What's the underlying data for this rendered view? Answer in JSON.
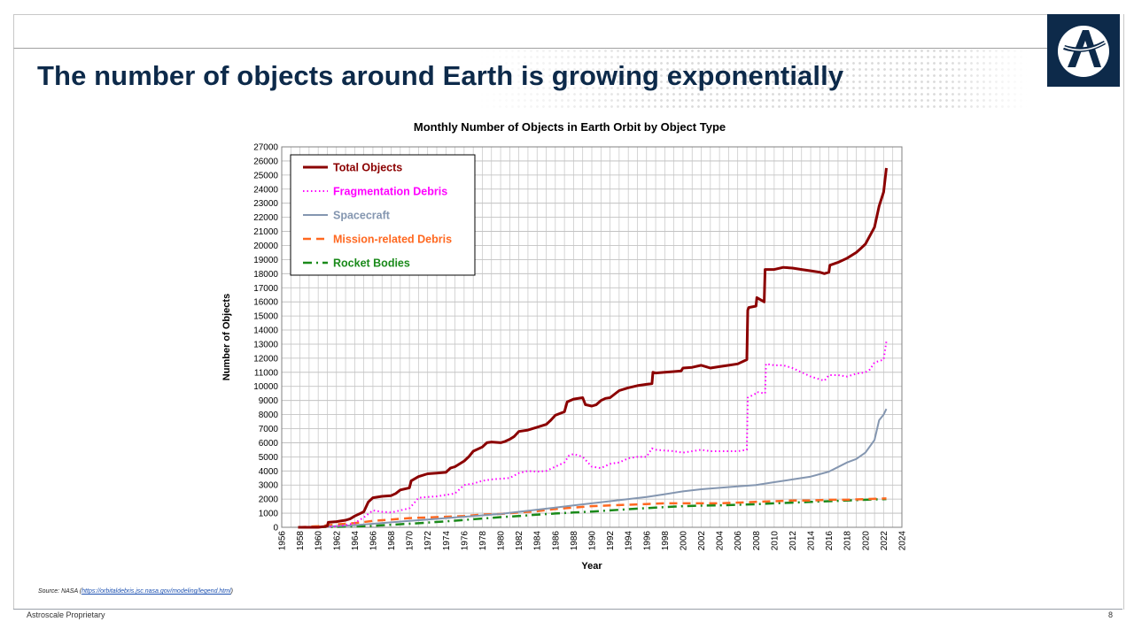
{
  "slide": {
    "title": "The number of objects around Earth is growing exponentially",
    "brand_color": "#0d2a4a",
    "logo_icon": "astroscale-logo-icon"
  },
  "source": {
    "prefix": "Source: NASA (",
    "link_text": "https://orbitaldebris.jsc.nasa.gov/modeling/legend.html",
    "suffix": ")"
  },
  "footer": {
    "left": "Astroscale Proprietary",
    "page_number": "8"
  },
  "chart_data": {
    "type": "line",
    "title": "Monthly Number of Objects in Earth Orbit by Object Type",
    "xlabel": "Year",
    "ylabel": "Number of Objects",
    "xlim": [
      1956,
      2024
    ],
    "ylim": [
      0,
      27000
    ],
    "x_step": 2,
    "y_step": 1000,
    "grid": true,
    "legend_position": "top-left",
    "x_ticks": [
      "1956",
      "1958",
      "1960",
      "1962",
      "1964",
      "1966",
      "1968",
      "1970",
      "1972",
      "1974",
      "1976",
      "1978",
      "1980",
      "1982",
      "1984",
      "1986",
      "1988",
      "1990",
      "1992",
      "1994",
      "1996",
      "1998",
      "2000",
      "2002",
      "2004",
      "2006",
      "2008",
      "2010",
      "2012",
      "2014",
      "2016",
      "2018",
      "2020",
      "2022",
      "2024"
    ],
    "y_ticks": [
      "0",
      "1000",
      "2000",
      "3000",
      "4000",
      "5000",
      "6000",
      "7000",
      "8000",
      "9000",
      "10000",
      "11000",
      "12000",
      "13000",
      "14000",
      "15000",
      "16000",
      "17000",
      "18000",
      "19000",
      "20000",
      "21000",
      "22000",
      "23000",
      "24000",
      "25000",
      "26000",
      "27000"
    ],
    "series": [
      {
        "name": "Total Objects",
        "color": "#8b0000",
        "dash": "solid",
        "width": 3,
        "x": [
          1957.8,
          1959,
          1960,
          1961,
          1961.1,
          1962,
          1963,
          1963.5,
          1964,
          1965,
          1965.5,
          1966,
          1967,
          1968,
          1968.5,
          1969,
          1970,
          1970.2,
          1971,
          1972,
          1973,
          1974,
          1974.5,
          1975,
          1976,
          1976.5,
          1977,
          1978,
          1978.5,
          1979,
          1980,
          1980.5,
          1981,
          1981.5,
          1982,
          1983,
          1984,
          1985,
          1985.5,
          1986,
          1987,
          1987.3,
          1988,
          1989,
          1989.3,
          1990,
          1990.5,
          1991,
          1991.5,
          1992,
          1993,
          1994,
          1995,
          1996,
          1996.6,
          1996.7,
          1997,
          1998,
          1999,
          1999.8,
          2000,
          2001,
          2002,
          2002.5,
          2003,
          2004,
          2005,
          2006,
          2007,
          2007.1,
          2007.2,
          2008,
          2008.1,
          2008.9,
          2009,
          2010,
          2011,
          2012,
          2013,
          2014,
          2015,
          2015.5,
          2016,
          2016.1,
          2017,
          2018,
          2019,
          2019.5,
          2020,
          2021,
          2021.5,
          2022,
          2022.3
        ],
        "y": [
          0,
          0,
          0,
          80,
          350,
          400,
          500,
          600,
          800,
          1100,
          1800,
          2100,
          2200,
          2250,
          2400,
          2650,
          2800,
          3300,
          3600,
          3800,
          3850,
          3900,
          4200,
          4300,
          4700,
          5000,
          5400,
          5700,
          6000,
          6050,
          6000,
          6100,
          6250,
          6450,
          6800,
          6900,
          7100,
          7300,
          7600,
          7950,
          8200,
          8900,
          9100,
          9200,
          8700,
          8600,
          8700,
          9000,
          9150,
          9200,
          9700,
          9900,
          10050,
          10150,
          10200,
          11000,
          10950,
          11000,
          11050,
          11100,
          11300,
          11350,
          11500,
          11400,
          11300,
          11400,
          11500,
          11600,
          11900,
          15400,
          15600,
          15700,
          16300,
          16000,
          18300,
          18300,
          18450,
          18400,
          18300,
          18200,
          18100,
          18000,
          18100,
          18600,
          18800,
          19100,
          19500,
          19800,
          20100,
          21300,
          22800,
          23800,
          25500
        ]
      },
      {
        "name": "Fragmentation Debris",
        "color": "#ff00ff",
        "dash": "dot",
        "width": 2,
        "x": [
          1960,
          1961.5,
          1963,
          1964,
          1965,
          1966,
          1967,
          1968,
          1969,
          1970,
          1970.5,
          1971,
          1972,
          1973,
          1974,
          1975,
          1975.5,
          1976,
          1977,
          1978,
          1979,
          1980,
          1981,
          1982,
          1983,
          1984,
          1985,
          1986,
          1987,
          1987.5,
          1988,
          1989,
          1990,
          1991,
          1992,
          1993,
          1994,
          1995,
          1996,
          1996.6,
          1997,
          1998,
          1999,
          2000,
          2001,
          2002,
          2003,
          2004,
          2005,
          2006,
          2007,
          2007.1,
          2008,
          2008.1,
          2009,
          2009.1,
          2010,
          2011,
          2012,
          2013,
          2014,
          2015,
          2015.5,
          2016,
          2017,
          2018,
          2019,
          2020,
          2020.5,
          2021,
          2022,
          2022.3
        ],
        "y": [
          0,
          50,
          150,
          300,
          700,
          1200,
          1100,
          1050,
          1200,
          1350,
          1700,
          2100,
          2150,
          2200,
          2300,
          2400,
          2700,
          3000,
          3100,
          3300,
          3400,
          3450,
          3500,
          3850,
          4000,
          3950,
          4000,
          4300,
          4600,
          5100,
          5200,
          5000,
          4300,
          4200,
          4500,
          4600,
          4900,
          5000,
          5000,
          5600,
          5500,
          5450,
          5400,
          5300,
          5400,
          5500,
          5400,
          5400,
          5400,
          5400,
          5500,
          9200,
          9500,
          9600,
          9500,
          11600,
          11500,
          11500,
          11300,
          11000,
          10700,
          10500,
          10400,
          10800,
          10800,
          10700,
          10900,
          11000,
          11200,
          11700,
          11900,
          13200
        ]
      },
      {
        "name": "Spacecraft",
        "color": "#8496b0",
        "dash": "solid",
        "width": 2,
        "x": [
          1957.8,
          1960,
          1962,
          1964,
          1966,
          1968,
          1970,
          1972,
          1974,
          1976,
          1978,
          1980,
          1982,
          1984,
          1986,
          1988,
          1990,
          1992,
          1994,
          1996,
          1998,
          2000,
          2002,
          2004,
          2006,
          2008,
          2010,
          2012,
          2014,
          2016,
          2018,
          2019,
          2020,
          2021,
          2021.5,
          2022,
          2022.3
        ],
        "y": [
          0,
          30,
          80,
          150,
          250,
          350,
          450,
          550,
          650,
          750,
          850,
          950,
          1100,
          1250,
          1400,
          1550,
          1700,
          1850,
          2000,
          2150,
          2350,
          2550,
          2700,
          2800,
          2900,
          3000,
          3200,
          3400,
          3600,
          3950,
          4600,
          4850,
          5300,
          6200,
          7600,
          8000,
          8400
        ]
      },
      {
        "name": "Mission-related Debris",
        "color": "#ff6820",
        "dash": "dash",
        "width": 2.5,
        "x": [
          1957.8,
          1960,
          1962,
          1964,
          1966,
          1968,
          1970,
          1972,
          1974,
          1976,
          1978,
          1980,
          1982,
          1984,
          1986,
          1988,
          1990,
          1992,
          1994,
          1996,
          1998,
          2000,
          2002,
          2004,
          2006,
          2008,
          2010,
          2012,
          2014,
          2016,
          2018,
          2020,
          2022.3
        ],
        "y": [
          0,
          80,
          200,
          300,
          450,
          550,
          650,
          700,
          750,
          800,
          900,
          950,
          1050,
          1150,
          1300,
          1400,
          1500,
          1550,
          1600,
          1650,
          1700,
          1700,
          1700,
          1700,
          1750,
          1800,
          1850,
          1900,
          1900,
          1950,
          1950,
          2000,
          2050
        ]
      },
      {
        "name": "Rocket Bodies",
        "color": "#1a8a1a",
        "dash": "dashdot",
        "width": 2.5,
        "x": [
          1957.8,
          1960,
          1962,
          1964,
          1966,
          1968,
          1970,
          1972,
          1974,
          1976,
          1978,
          1980,
          1982,
          1984,
          1986,
          1988,
          1990,
          1992,
          1994,
          1996,
          1998,
          2000,
          2002,
          2004,
          2006,
          2008,
          2010,
          2012,
          2014,
          2016,
          2018,
          2020,
          2022.3
        ],
        "y": [
          0,
          10,
          30,
          60,
          100,
          180,
          250,
          330,
          420,
          520,
          620,
          720,
          800,
          900,
          980,
          1050,
          1120,
          1200,
          1280,
          1360,
          1430,
          1500,
          1540,
          1560,
          1600,
          1640,
          1700,
          1750,
          1800,
          1850,
          1900,
          1950,
          2000
        ]
      }
    ]
  }
}
